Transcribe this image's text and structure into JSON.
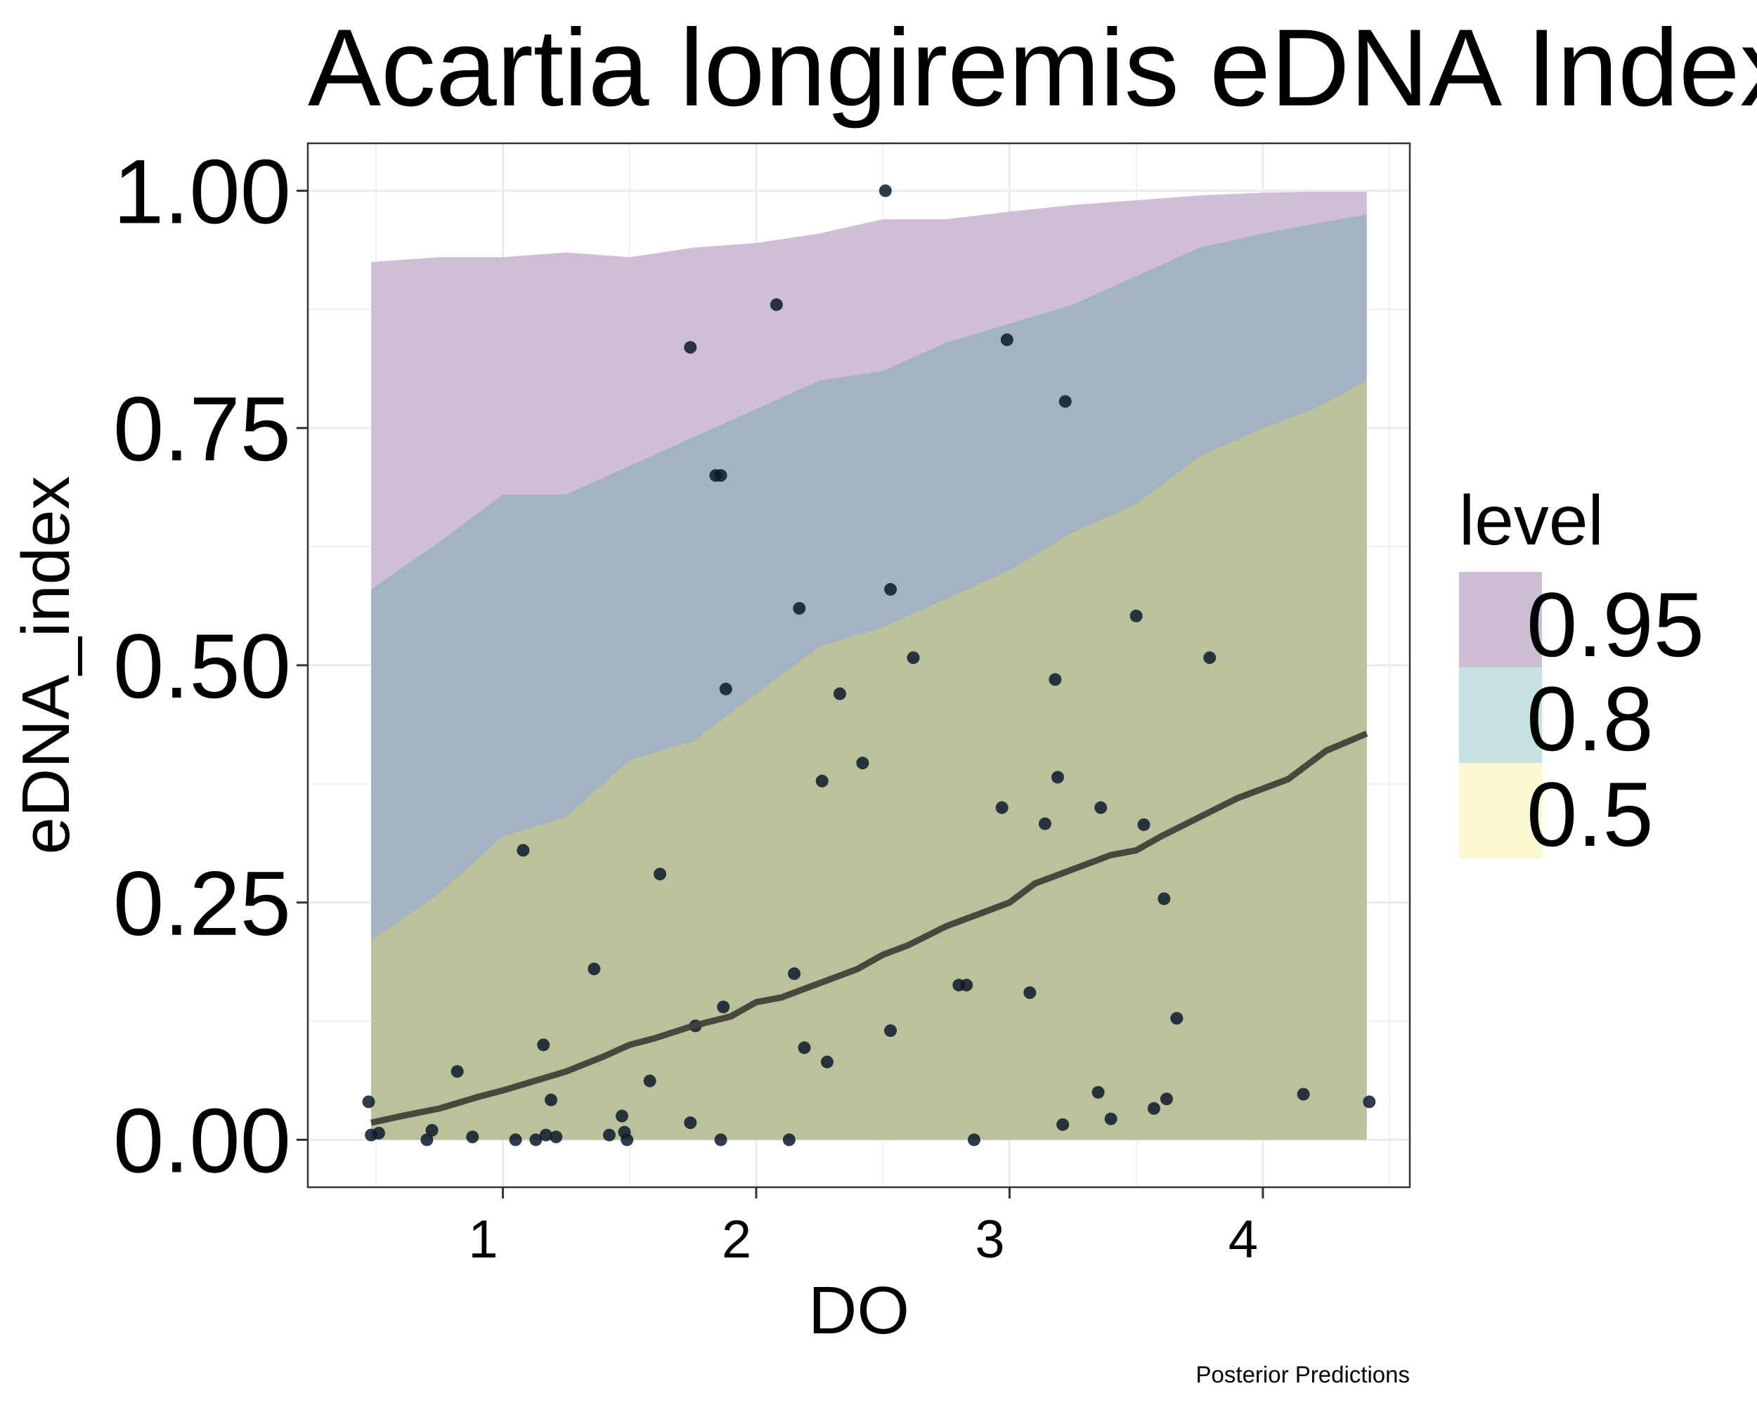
{
  "chart_data": {
    "type": "area",
    "title": "Acartia longiremis eDNA Index",
    "xlabel": "DO",
    "ylabel": "eDNA_index",
    "caption": "Posterior Predictions",
    "xlim": [
      0.23,
      4.58
    ],
    "ylim": [
      -0.05,
      1.05
    ],
    "x_ticks": [
      1,
      2,
      3,
      4
    ],
    "x_tick_labels": [
      "1",
      "2",
      "3",
      "4"
    ],
    "y_ticks": [
      0,
      0.25,
      0.5,
      0.75,
      1.0
    ],
    "y_tick_labels": [
      "0.00",
      "0.25",
      "0.50",
      "0.75",
      "1.00"
    ],
    "grid": true,
    "legend": {
      "title": "level",
      "position": "right",
      "items": [
        {
          "label": "0.95",
          "color": "#cdbdd5"
        },
        {
          "label": "0.8",
          "color": "#c6e3e1"
        },
        {
          "label": "0.5",
          "color": "#fbf8cf"
        }
      ]
    },
    "colors": {
      "band_95": "#cfbed5",
      "band_80": "#a2b3c4",
      "band_50": "#bbc19a",
      "median_line": "#3f4237",
      "points": "#0c1a2c",
      "panel_border": "#333333",
      "grid": "#ebebeb"
    },
    "bands": {
      "x": [
        0.48,
        0.75,
        1.0,
        1.25,
        1.5,
        1.75,
        2.0,
        2.25,
        2.5,
        2.75,
        3.0,
        3.25,
        3.5,
        3.75,
        4.0,
        4.2,
        4.41
      ],
      "level_95": {
        "lower": [
          0,
          0,
          0,
          0,
          0,
          0,
          0,
          0,
          0,
          0,
          0,
          0,
          0.003,
          0.006,
          0.01,
          0.014,
          0.016
        ],
        "upper": [
          0.925,
          0.93,
          0.93,
          0.935,
          0.93,
          0.94,
          0.945,
          0.955,
          0.97,
          0.97,
          0.978,
          0.985,
          0.99,
          0.995,
          0.998,
          0.999,
          0.999
        ]
      },
      "level_80": {
        "lower": [
          0,
          0,
          0,
          0,
          0,
          0.005,
          0.015,
          0.02,
          0.03,
          0.04,
          0.045,
          0.06,
          0.07,
          0.09,
          0.105,
          0.12,
          0.135
        ],
        "upper": [
          0.58,
          0.63,
          0.68,
          0.68,
          0.71,
          0.74,
          0.77,
          0.8,
          0.81,
          0.84,
          0.86,
          0.88,
          0.91,
          0.94,
          0.955,
          0.965,
          0.975
        ]
      },
      "level_50": {
        "lower": [
          0,
          0,
          0,
          0,
          0,
          0,
          0,
          0,
          0,
          0,
          0,
          0,
          0,
          0,
          0,
          0,
          0
        ],
        "upper": [
          0.21,
          0.26,
          0.32,
          0.34,
          0.4,
          0.42,
          0.47,
          0.52,
          0.54,
          0.57,
          0.6,
          0.64,
          0.67,
          0.72,
          0.75,
          0.77,
          0.8
        ]
      }
    },
    "median": {
      "x": [
        0.48,
        0.6,
        0.75,
        0.9,
        1.0,
        1.1,
        1.25,
        1.4,
        1.5,
        1.6,
        1.75,
        1.9,
        2.0,
        2.1,
        2.25,
        2.4,
        2.5,
        2.6,
        2.75,
        2.9,
        3.0,
        3.1,
        3.25,
        3.4,
        3.5,
        3.6,
        3.75,
        3.9,
        4.0,
        4.1,
        4.25,
        4.41
      ],
      "y": [
        0.018,
        0.025,
        0.033,
        0.045,
        0.052,
        0.06,
        0.072,
        0.088,
        0.1,
        0.107,
        0.12,
        0.13,
        0.145,
        0.15,
        0.165,
        0.18,
        0.195,
        0.205,
        0.225,
        0.24,
        0.25,
        0.27,
        0.285,
        0.3,
        0.305,
        0.32,
        0.34,
        0.36,
        0.37,
        0.38,
        0.41,
        0.428
      ]
    },
    "points": {
      "x": [
        0.47,
        0.48,
        0.51,
        0.7,
        0.72,
        0.82,
        0.88,
        1.05,
        1.08,
        1.13,
        1.16,
        1.17,
        1.19,
        1.21,
        1.36,
        1.42,
        1.47,
        1.48,
        1.49,
        1.58,
        1.62,
        1.74,
        1.76,
        1.74,
        1.84,
        1.86,
        1.86,
        1.87,
        1.88,
        2.08,
        2.13,
        2.15,
        2.17,
        2.19,
        2.26,
        2.28,
        2.33,
        2.42,
        2.51,
        2.53,
        2.53,
        2.62,
        2.8,
        2.83,
        2.86,
        2.97,
        2.99,
        3.08,
        3.14,
        3.18,
        3.19,
        3.21,
        3.22,
        3.35,
        3.36,
        3.4,
        3.5,
        3.53,
        3.57,
        3.61,
        3.62,
        3.66,
        3.79,
        4.16,
        4.42
      ],
      "y": [
        0.04,
        0.005,
        0.007,
        0.0,
        0.01,
        0.072,
        0.003,
        0.0,
        0.305,
        0.0,
        0.1,
        0.005,
        0.042,
        0.003,
        0.18,
        0.005,
        0.025,
        0.008,
        0.0,
        0.062,
        0.28,
        0.018,
        0.12,
        0.835,
        0.7,
        0.7,
        0.0,
        0.14,
        0.475,
        0.88,
        0.0,
        0.175,
        0.56,
        0.097,
        0.378,
        0.082,
        0.47,
        0.397,
        1.0,
        0.58,
        0.115,
        0.508,
        0.163,
        0.163,
        0.0,
        0.35,
        0.843,
        0.155,
        0.333,
        0.485,
        0.382,
        0.016,
        0.778,
        0.05,
        0.35,
        0.022,
        0.552,
        0.332,
        0.033,
        0.254,
        0.043,
        0.128,
        0.508,
        0.048,
        0.04
      ]
    }
  }
}
